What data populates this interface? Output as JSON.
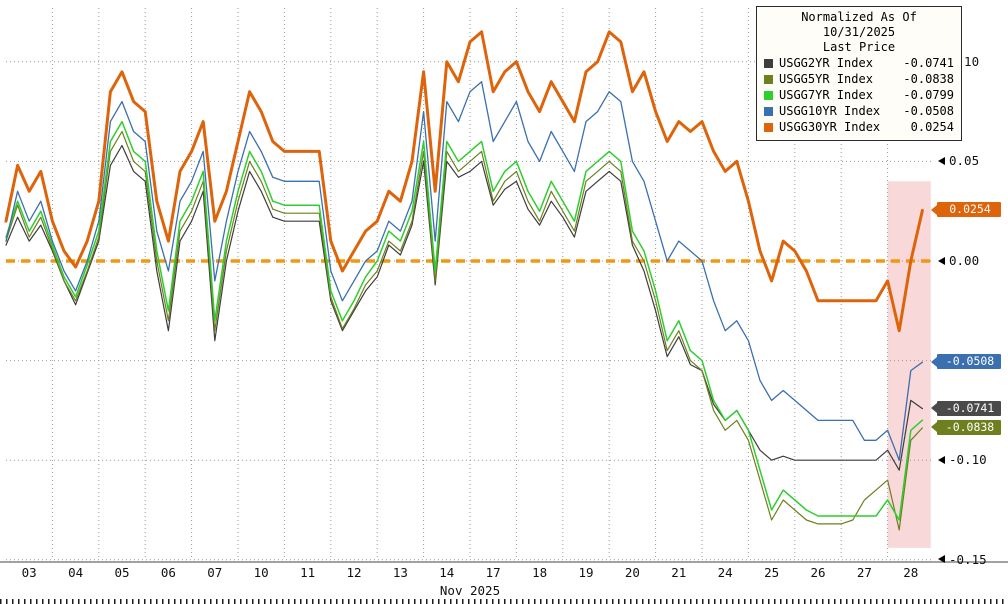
{
  "chart_data": {
    "type": "line",
    "legend": {
      "title": "Normalized As Of 10/31/2025",
      "subtitle": "Last Price"
    },
    "x_axis_title": "Nov 2025",
    "x_ticks": [
      "03",
      "04",
      "05",
      "06",
      "07",
      "10",
      "11",
      "12",
      "13",
      "14",
      "17",
      "18",
      "19",
      "20",
      "21",
      "24",
      "25",
      "26",
      "27",
      "28"
    ],
    "x_step_days": 0.25,
    "y_ticks": [
      {
        "value": 0.1,
        "label": "0.10"
      },
      {
        "value": 0.05,
        "label": "0.05"
      },
      {
        "value": 0.0,
        "label": "0.00"
      },
      {
        "value": -0.05,
        "label": "-0.05"
      },
      {
        "value": -0.1,
        "label": "-0.10"
      },
      {
        "value": -0.15,
        "label": "-0.15"
      }
    ],
    "ylim": [
      -0.15,
      0.127
    ],
    "grid": "dotted",
    "zero_line": {
      "value": 0,
      "color": "#f0980f",
      "style": "dashed"
    },
    "highlight_band": {
      "start_day": 19.0,
      "end_day": 19.93,
      "top_value": 0.04,
      "bottom_value": -0.144,
      "color": "#f3b8b8",
      "opacity": 0.55
    },
    "badges": [
      {
        "label": "0.0254",
        "value": 0.0254,
        "color": "#dd640b"
      },
      {
        "label": "-0.0508",
        "value": -0.0508,
        "color": "#3a6fb0"
      },
      {
        "label": "-0.0741",
        "value": -0.0741,
        "color": "#4a4a4a"
      },
      {
        "label": "-0.0838",
        "value": -0.0838,
        "color": "#6e7f1d"
      }
    ],
    "series": [
      {
        "name": "USGG2YR Index",
        "last_price": "-0.0741",
        "color": "#3d3d3d",
        "line_width": 1.2,
        "values": [
          0.008,
          0.022,
          0.01,
          0.018,
          0.005,
          -0.01,
          -0.022,
          -0.006,
          0.01,
          0.048,
          0.058,
          0.045,
          0.04,
          -0.005,
          -0.035,
          0.01,
          0.02,
          0.035,
          -0.04,
          0.0,
          0.025,
          0.045,
          0.035,
          0.022,
          0.02,
          0.02,
          0.02,
          0.02,
          -0.02,
          -0.035,
          -0.025,
          -0.015,
          -0.008,
          0.008,
          0.003,
          0.018,
          0.05,
          -0.012,
          0.05,
          0.042,
          0.045,
          0.05,
          0.028,
          0.036,
          0.04,
          0.026,
          0.018,
          0.03,
          0.022,
          0.012,
          0.035,
          0.04,
          0.045,
          0.04,
          0.008,
          -0.005,
          -0.025,
          -0.048,
          -0.038,
          -0.052,
          -0.055,
          -0.072,
          -0.08,
          -0.075,
          -0.085,
          -0.095,
          -0.1,
          -0.098,
          -0.1,
          -0.1,
          -0.1,
          -0.1,
          -0.1,
          -0.1,
          -0.1,
          -0.1,
          -0.095,
          -0.105,
          -0.07,
          -0.0741
        ]
      },
      {
        "name": "USGG5YR Index",
        "last_price": "-0.0838",
        "color": "#6e7f1d",
        "line_width": 1.2,
        "values": [
          0.01,
          0.028,
          0.012,
          0.022,
          0.006,
          -0.01,
          -0.02,
          -0.005,
          0.012,
          0.055,
          0.065,
          0.05,
          0.045,
          0.0,
          -0.03,
          0.015,
          0.025,
          0.04,
          -0.035,
          0.005,
          0.03,
          0.05,
          0.04,
          0.026,
          0.024,
          0.024,
          0.024,
          0.024,
          -0.018,
          -0.034,
          -0.024,
          -0.012,
          -0.005,
          0.01,
          0.005,
          0.02,
          0.055,
          -0.01,
          0.055,
          0.045,
          0.05,
          0.055,
          0.03,
          0.04,
          0.045,
          0.03,
          0.02,
          0.035,
          0.025,
          0.015,
          0.04,
          0.045,
          0.05,
          0.045,
          0.01,
          0.0,
          -0.02,
          -0.045,
          -0.035,
          -0.05,
          -0.055,
          -0.075,
          -0.085,
          -0.08,
          -0.09,
          -0.11,
          -0.13,
          -0.12,
          -0.125,
          -0.13,
          -0.132,
          -0.132,
          -0.132,
          -0.13,
          -0.12,
          -0.115,
          -0.11,
          -0.135,
          -0.09,
          -0.0838
        ]
      },
      {
        "name": "USGG7YR Index",
        "last_price": "-0.0799",
        "color": "#2fce2f",
        "line_width": 1.5,
        "values": [
          0.012,
          0.03,
          0.015,
          0.025,
          0.008,
          -0.008,
          -0.018,
          -0.002,
          0.015,
          0.06,
          0.07,
          0.055,
          0.05,
          0.005,
          -0.025,
          0.02,
          0.03,
          0.045,
          -0.03,
          0.01,
          0.035,
          0.055,
          0.045,
          0.03,
          0.028,
          0.028,
          0.028,
          0.028,
          -0.015,
          -0.03,
          -0.02,
          -0.008,
          0.0,
          0.015,
          0.01,
          0.025,
          0.06,
          -0.005,
          0.06,
          0.05,
          0.055,
          0.06,
          0.035,
          0.045,
          0.05,
          0.035,
          0.025,
          0.04,
          0.03,
          0.02,
          0.045,
          0.05,
          0.055,
          0.05,
          0.015,
          0.005,
          -0.015,
          -0.04,
          -0.03,
          -0.045,
          -0.05,
          -0.07,
          -0.08,
          -0.075,
          -0.085,
          -0.105,
          -0.125,
          -0.115,
          -0.12,
          -0.125,
          -0.128,
          -0.128,
          -0.128,
          -0.128,
          -0.128,
          -0.128,
          -0.12,
          -0.13,
          -0.085,
          -0.0799
        ]
      },
      {
        "name": "USGG10YR Index",
        "last_price": "-0.0508",
        "color": "#3a6fb0",
        "line_width": 1.3,
        "values": [
          0.01,
          0.035,
          0.02,
          0.03,
          0.01,
          -0.005,
          -0.015,
          0.0,
          0.02,
          0.07,
          0.08,
          0.065,
          0.06,
          0.015,
          -0.005,
          0.03,
          0.04,
          0.055,
          -0.01,
          0.02,
          0.045,
          0.065,
          0.055,
          0.042,
          0.04,
          0.04,
          0.04,
          0.04,
          -0.005,
          -0.02,
          -0.01,
          0.0,
          0.005,
          0.02,
          0.015,
          0.03,
          0.075,
          0.01,
          0.08,
          0.07,
          0.085,
          0.09,
          0.06,
          0.07,
          0.08,
          0.06,
          0.05,
          0.065,
          0.055,
          0.045,
          0.07,
          0.075,
          0.085,
          0.08,
          0.05,
          0.04,
          0.02,
          0.0,
          0.01,
          0.005,
          0.0,
          -0.02,
          -0.035,
          -0.03,
          -0.04,
          -0.06,
          -0.07,
          -0.065,
          -0.07,
          -0.075,
          -0.08,
          -0.08,
          -0.08,
          -0.08,
          -0.09,
          -0.09,
          -0.085,
          -0.1,
          -0.055,
          -0.0508
        ]
      },
      {
        "name": "USGG30YR Index",
        "last_price": "0.0254",
        "color": "#dd640b",
        "line_width": 3,
        "values": [
          0.02,
          0.048,
          0.035,
          0.045,
          0.02,
          0.005,
          -0.003,
          0.01,
          0.03,
          0.085,
          0.095,
          0.08,
          0.075,
          0.03,
          0.01,
          0.045,
          0.055,
          0.07,
          0.02,
          0.035,
          0.06,
          0.085,
          0.075,
          0.06,
          0.055,
          0.055,
          0.055,
          0.055,
          0.01,
          -0.005,
          0.005,
          0.015,
          0.02,
          0.035,
          0.03,
          0.05,
          0.095,
          0.035,
          0.1,
          0.09,
          0.11,
          0.115,
          0.085,
          0.095,
          0.1,
          0.085,
          0.075,
          0.09,
          0.08,
          0.07,
          0.095,
          0.1,
          0.115,
          0.11,
          0.085,
          0.095,
          0.075,
          0.06,
          0.07,
          0.065,
          0.07,
          0.055,
          0.045,
          0.05,
          0.03,
          0.005,
          -0.01,
          0.01,
          0.005,
          -0.005,
          -0.02,
          -0.02,
          -0.02,
          -0.02,
          -0.02,
          -0.02,
          -0.01,
          -0.035,
          0.0,
          0.0254
        ]
      }
    ]
  }
}
